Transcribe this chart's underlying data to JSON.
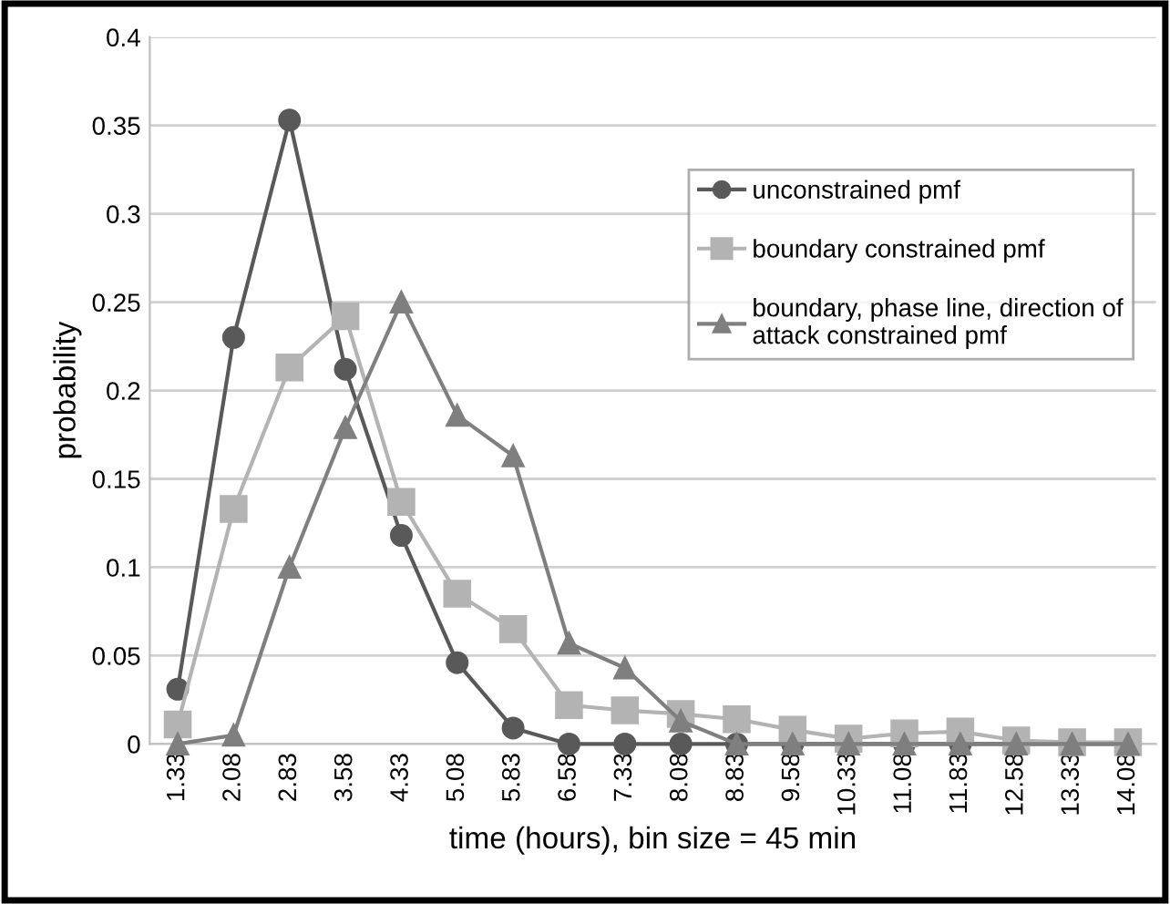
{
  "chart_data": {
    "type": "line",
    "xlabel": "time (hours), bin size = 45 min",
    "ylabel": "probability",
    "categories": [
      "1.33",
      "2.08",
      "2.83",
      "3.58",
      "4.33",
      "5.08",
      "5.83",
      "6.58",
      "7.33",
      "8.08",
      "8.83",
      "9.58",
      "10.33",
      "11.08",
      "11.83",
      "12.58",
      "13.33",
      "14.08"
    ],
    "series": [
      {
        "name": "unconstrained pmf",
        "color": "#595959",
        "marker": "circle",
        "values": [
          0.031,
          0.23,
          0.353,
          0.212,
          0.118,
          0.046,
          0.009,
          0,
          0,
          0,
          0,
          0,
          0,
          0,
          0,
          0,
          0,
          0
        ]
      },
      {
        "name": "boundary constrained pmf",
        "color": "#b3b3b3",
        "marker": "square",
        "values": [
          0.011,
          0.133,
          0.213,
          0.242,
          0.137,
          0.085,
          0.065,
          0.022,
          0.019,
          0.017,
          0.014,
          0.008,
          0.003,
          0.006,
          0.007,
          0.002,
          0.001,
          0.001
        ]
      },
      {
        "name": "boundary, phase line, direction of attack constrained pmf",
        "color": "#7f7f7f",
        "marker": "triangle",
        "values": [
          0,
          0.005,
          0.1,
          0.179,
          0.25,
          0.186,
          0.163,
          0.057,
          0.043,
          0.013,
          0,
          0,
          0,
          0,
          0,
          0,
          0,
          0
        ]
      }
    ],
    "ylim": [
      0,
      0.4
    ],
    "yticks": [
      {
        "value": 0,
        "label": "0"
      },
      0.05,
      0.1,
      0.15,
      0.2,
      0.25,
      0.3,
      0.35,
      0.4
    ],
    "grid": "y",
    "legend": "top right"
  }
}
